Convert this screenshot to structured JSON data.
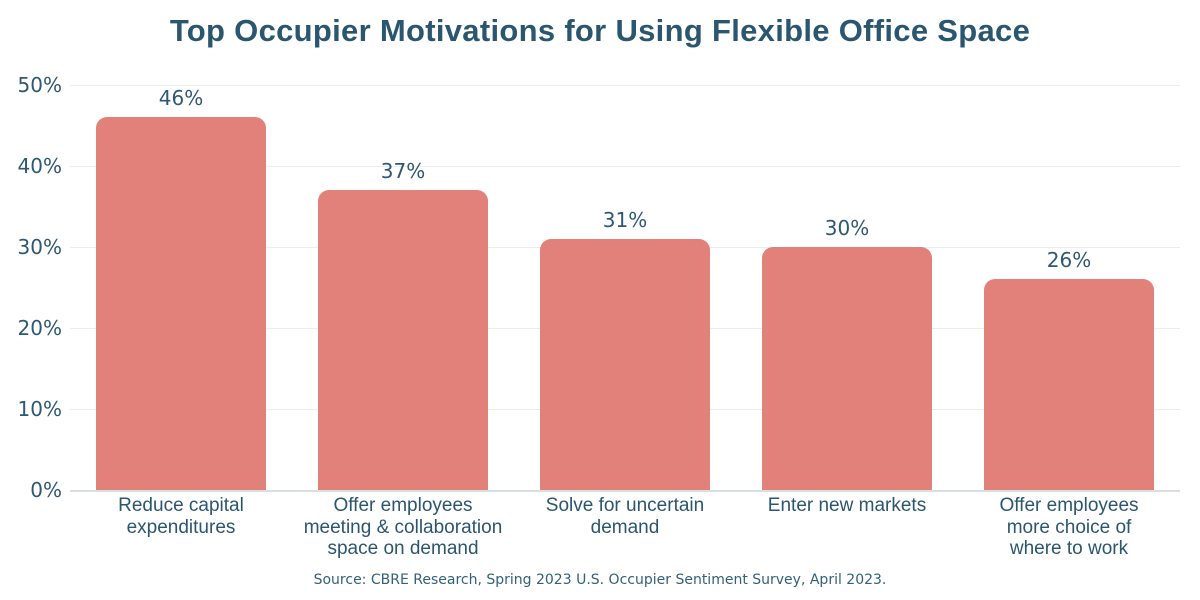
{
  "colors": {
    "bar": "#E2817A",
    "title_text": "#2B566F",
    "axis_text": "#2F5874",
    "gridline": "#E9EDF0",
    "baseline": "#D9DEE2",
    "background": "#FFFFFF"
  },
  "chart_data": {
    "type": "bar",
    "title": "Top Occupier Motivations for Using Flexible Office Space",
    "categories": [
      "Reduce capital expenditures",
      "Offer employees meeting & collaboration space on demand",
      "Solve for uncertain demand",
      "Enter new markets",
      "Offer employees more choice of where to work"
    ],
    "category_lines": [
      [
        "Reduce capital",
        "expenditures"
      ],
      [
        "Offer employees",
        "meeting & collaboration",
        "space on demand"
      ],
      [
        "Solve for uncertain",
        "demand"
      ],
      [
        "Enter new markets"
      ],
      [
        "Offer employees",
        "more choice of",
        "where to work"
      ]
    ],
    "values": [
      46,
      37,
      31,
      30,
      26
    ],
    "value_labels": [
      "46%",
      "37%",
      "31%",
      "30%",
      "26%"
    ],
    "xlabel": "",
    "ylabel": "",
    "ylim": [
      0,
      50
    ],
    "yticks": [
      0,
      10,
      20,
      30,
      40,
      50
    ],
    "ytick_labels": [
      "0%",
      "10%",
      "20%",
      "30%",
      "40%",
      "50%"
    ],
    "grid": "horizontal",
    "legend": "none",
    "source": "Source: CBRE Research, Spring 2023 U.S. Occupier Sentiment Survey, April 2023."
  }
}
